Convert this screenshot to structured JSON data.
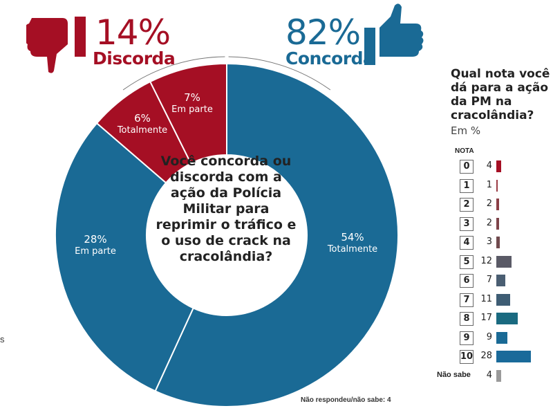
{
  "chart_data": [
    {
      "type": "pie",
      "title": "Você concorda ou discorda com a ação da Polícia Militar para reprimir o tráfico e o uso de crack na cracolândia?",
      "groups": [
        {
          "name": "Discorda",
          "total": "14%",
          "color": "#a50f24"
        },
        {
          "name": "Concorda",
          "total": "82%",
          "color": "#1a6a95"
        }
      ],
      "slices": [
        {
          "group": "Concorda",
          "label": "Totalmente",
          "value": 54,
          "text": "54%",
          "color": "#1a6a95"
        },
        {
          "group": "Concorda",
          "label": "Em parte",
          "value": 28,
          "text": "28%",
          "color": "#1a6a95"
        },
        {
          "group": "Discorda",
          "label": "Totalmente",
          "value": 6,
          "text": "6%",
          "color": "#a50f24"
        },
        {
          "group": "Discorda",
          "label": "Em parte",
          "value": 7,
          "text": "7%",
          "color": "#a50f24"
        }
      ],
      "footnote": "Não respondeu/não sabe: 4"
    },
    {
      "type": "bar",
      "title": "Qual nota você dá para a ação da PM na cracolândia?",
      "unit": "Em %",
      "category_header": "NOTA",
      "categories": [
        "0",
        "1",
        "2",
        "3",
        "4",
        "5",
        "6",
        "7",
        "8",
        "9",
        "10",
        "Não sabe"
      ],
      "values": [
        4,
        1,
        2,
        2,
        3,
        12,
        7,
        11,
        17,
        9,
        28,
        4
      ],
      "colors": [
        "#a50f24",
        "#9a3b45",
        "#8c3f46",
        "#7e444a",
        "#704a4e",
        "#5a5a66",
        "#4a5e72",
        "#3e5d74",
        "#1a6a80",
        "#1a6a95",
        "#1a6a9a",
        "#9a9a9a"
      ]
    }
  ],
  "edge_text": "s"
}
